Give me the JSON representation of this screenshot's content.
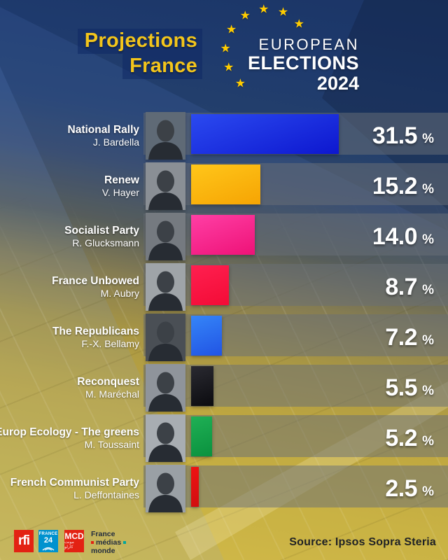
{
  "header": {
    "title": {
      "line1": "Projections",
      "line2": "France",
      "color": "#f3c51b"
    },
    "eu_logo": {
      "word1": "EUROPEAN",
      "word2": "ELECTIONS",
      "word3": "2024",
      "star_icon": "★",
      "star_color": "#ffcc00",
      "text_color": "#ffffff"
    }
  },
  "chart_data": {
    "type": "bar",
    "orientation": "horizontal",
    "title": "Projections France",
    "unit": "%",
    "value_range": [
      0,
      31.5
    ],
    "source": "Ipsos Sopra Steria",
    "rows": [
      {
        "party": "National Rally",
        "candidate": "J. Bardella",
        "value": 31.5,
        "value_label": "31.5",
        "bar_color": "#2b4af0",
        "bar_color2": "#0d17cf",
        "photo": "j-bardella",
        "photo_bg": "#5f6a76"
      },
      {
        "party": "Renew",
        "candidate": "V. Hayer",
        "value": 15.2,
        "value_label": "15.2",
        "bar_color": "#ffc61a",
        "bar_color2": "#f6a403",
        "photo": "v-hayer",
        "photo_bg": "#8a8f95"
      },
      {
        "party": "Socialist Party",
        "candidate": "R. Glucksmann",
        "value": 14.0,
        "value_label": "14.0",
        "bar_color": "#ff3fa5",
        "bar_color2": "#ee1277",
        "photo": "r-glucksmann",
        "photo_bg": "#757a80"
      },
      {
        "party": "France Unbowed",
        "candidate": "M. Aubry",
        "value": 8.7,
        "value_label": "8.7",
        "bar_color": "#ff2050",
        "bar_color2": "#f30b36",
        "photo": "m-aubry",
        "photo_bg": "#9fa4a8"
      },
      {
        "party": "The Republicans",
        "candidate": "F.-X. Bellamy",
        "value": 7.2,
        "value_label": "7.2",
        "bar_color": "#3585f8",
        "bar_color2": "#2154e4",
        "photo": "f-x-bellamy",
        "photo_bg": "#4a4f55"
      },
      {
        "party": "Reconquest",
        "candidate": "M. Maréchal",
        "value": 5.5,
        "value_label": "5.5",
        "bar_color": "#2a2a31",
        "bar_color2": "#0b0b0f",
        "photo": "m-marechal",
        "photo_bg": "#8f949b"
      },
      {
        "party": "Europ Ecology - The greens",
        "candidate": "M. Toussaint",
        "value": 5.2,
        "value_label": "5.2",
        "bar_color": "#1fb055",
        "bar_color2": "#0a913e",
        "photo": "m-toussaint",
        "photo_bg": "#a8adb2"
      },
      {
        "party": "French Communist Party",
        "candidate": "L. Deffontaines",
        "value": 2.5,
        "value_label": "2.5",
        "bar_color": "#ef1312",
        "bar_color2": "#d00d10",
        "photo": "l-deffontaines",
        "photo_bg": "#9aa0a5"
      }
    ]
  },
  "footer": {
    "source": "Source: Ipsos Sopra Steria",
    "logos": {
      "rfi": {
        "text": "rfi",
        "bg": "#e32213"
      },
      "france24": {
        "line1": "FRANCE",
        "line2": "24",
        "bg": "#0092cf"
      },
      "mcd": {
        "text": "MCD",
        "subtext": "مونت كارلو",
        "bg": "#e32213"
      },
      "fmm": {
        "line1": "France",
        "line2": "médias",
        "line3": "monde",
        "accent_red": "#e32213",
        "accent_teal": "#00a79d"
      }
    }
  }
}
